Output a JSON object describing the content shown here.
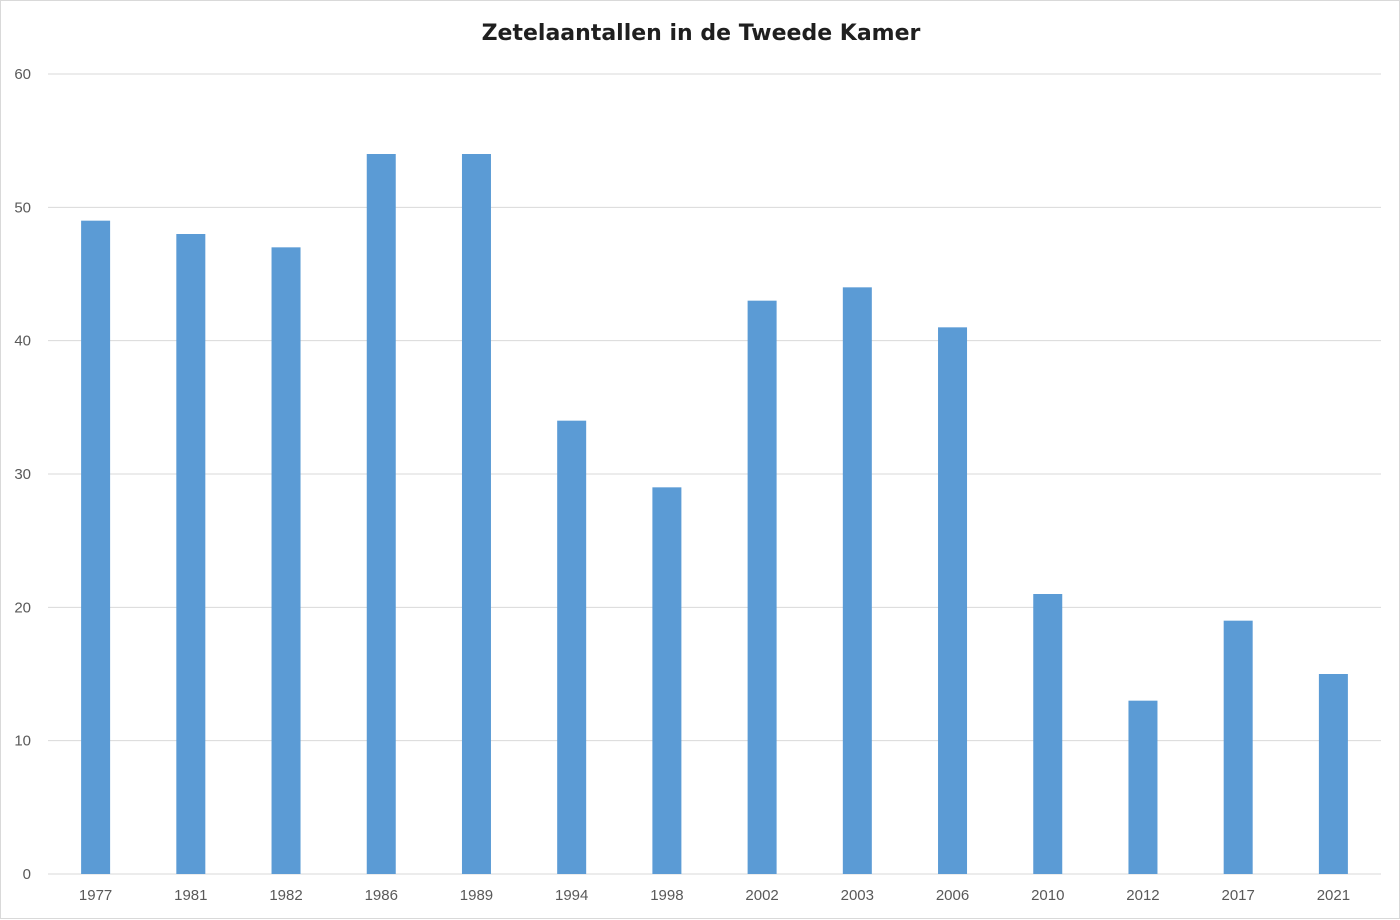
{
  "chart_data": {
    "type": "bar",
    "title": "Zetelaantallen in de Tweede Kamer",
    "xlabel": "",
    "ylabel": "",
    "categories": [
      "1977",
      "1981",
      "1982",
      "1986",
      "1989",
      "1994",
      "1998",
      "2002",
      "2003",
      "2006",
      "2010",
      "2012",
      "2017",
      "2021"
    ],
    "values": [
      49,
      48,
      47,
      54,
      54,
      34,
      29,
      43,
      44,
      41,
      21,
      13,
      19,
      15
    ],
    "ylim": [
      0,
      60
    ],
    "yticks": [
      "0",
      "10",
      "20",
      "30",
      "40",
      "50",
      "60"
    ],
    "grid": true,
    "legend": "none",
    "bar_color": "#5B9BD5",
    "grid_color": "#D9D9D9"
  }
}
